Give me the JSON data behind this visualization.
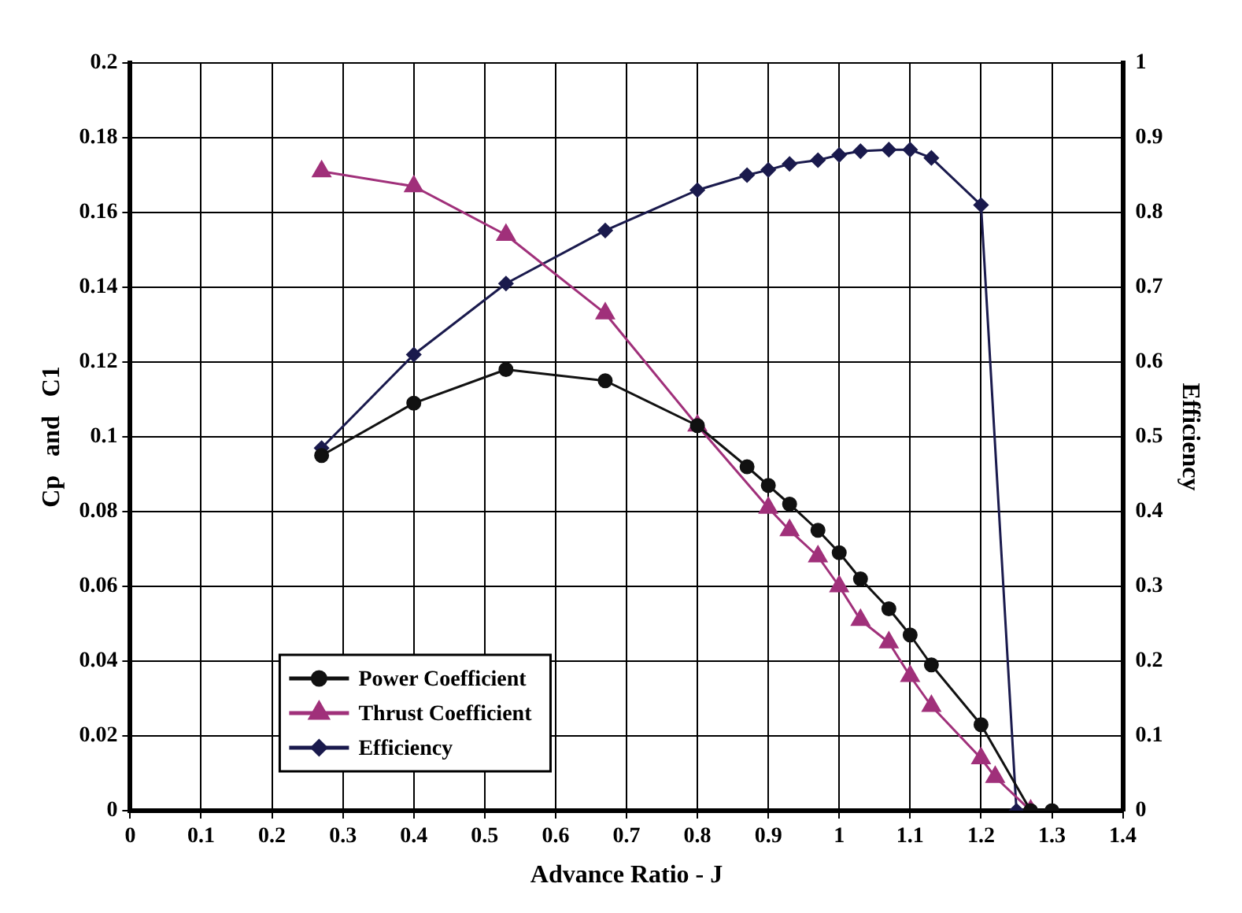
{
  "chart_data": {
    "type": "line",
    "xlabel": "Advance Ratio - J",
    "ylabel": "Cp   and   C1",
    "y2label": "Efficiency",
    "xlim": [
      0,
      1.4
    ],
    "xticks": [
      0,
      0.1,
      0.2,
      0.3,
      0.4,
      0.5,
      0.6,
      0.7,
      0.8,
      0.9,
      1,
      1.1,
      1.2,
      1.3,
      1.4
    ],
    "ylim": [
      0,
      0.2
    ],
    "yticks": [
      0,
      0.02,
      0.04,
      0.06,
      0.08,
      0.1,
      0.12,
      0.14,
      0.16,
      0.18,
      0.2
    ],
    "y2lim": [
      0,
      1
    ],
    "y2ticks": [
      0,
      0.1,
      0.2,
      0.3,
      0.4,
      0.5,
      0.6,
      0.7,
      0.8,
      0.9,
      1
    ],
    "grid": true,
    "legend": "bottom left",
    "line_style": "solid",
    "series": [
      {
        "name": "Power Coefficient",
        "color": "#111111",
        "marker": "circle",
        "x": [
          0.27,
          0.4,
          0.53,
          0.67,
          0.8,
          0.87,
          0.9,
          0.93,
          0.97,
          1.0,
          1.03,
          1.07,
          1.1,
          1.13,
          1.2,
          1.27,
          1.3
        ],
        "values": [
          0.095,
          0.109,
          0.118,
          0.115,
          0.103,
          0.092,
          0.087,
          0.082,
          0.075,
          0.069,
          0.062,
          0.054,
          0.047,
          0.039,
          0.023,
          0,
          0
        ]
      },
      {
        "name": "Thrust Coefficient",
        "color": "#a0307a",
        "marker": "triangle",
        "x": [
          0.27,
          0.4,
          0.53,
          0.67,
          0.8,
          0.9,
          0.93,
          0.97,
          1.0,
          1.03,
          1.07,
          1.1,
          1.13,
          1.2,
          1.22,
          1.27
        ],
        "values": [
          0.171,
          0.167,
          0.154,
          0.133,
          0.103,
          0.081,
          0.075,
          0.068,
          0.06,
          0.051,
          0.045,
          0.036,
          0.028,
          0.014,
          0.009,
          0
        ]
      },
      {
        "name": "Efficiency",
        "color": "#1a1a4d",
        "marker": "diamond",
        "axis": "y2",
        "x": [
          0.27,
          0.4,
          0.53,
          0.67,
          0.8,
          0.87,
          0.9,
          0.93,
          0.97,
          1.0,
          1.03,
          1.07,
          1.1,
          1.13,
          1.2,
          1.25
        ],
        "values": [
          0.485,
          0.61,
          0.705,
          0.776,
          0.83,
          0.85,
          0.857,
          0.865,
          0.87,
          0.877,
          0.882,
          0.884,
          0.884,
          0.873,
          0.81,
          0
        ]
      }
    ]
  }
}
